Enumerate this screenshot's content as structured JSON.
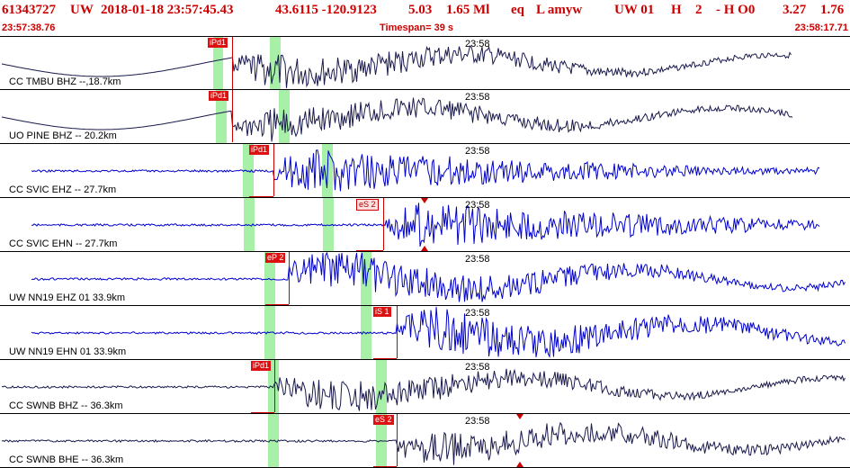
{
  "header": {
    "event_id": "61343727",
    "network": "UW",
    "datetime": "2018-01-18 23:57:45.43",
    "latlon": "43.6115 -120.9123",
    "depth": "5.03",
    "magnitude": "1.65 Ml",
    "type": "eq",
    "flags": "L amyw",
    "net_ver": "UW 01",
    "quality": "H",
    "num": "2",
    "status": "- H O0",
    "val1": "3.27",
    "val2": "1.76"
  },
  "subheader": {
    "start_time": "23:57:38.76",
    "timespan": "Timespan=  39 s",
    "end_time": "23:58:17.71"
  },
  "colors": {
    "header_red": "#cc0000",
    "trace_dark": "#1a1a4d",
    "trace_blue": "#0000cc",
    "pick_green": "#a8f0a8",
    "pick_red": "#dd1111"
  },
  "panels": [
    {
      "label": "CC TMBU BHZ --,18.7km",
      "time_label": "23:58",
      "pick": "iPd1",
      "pick_style": "dark",
      "trace_color": "dark",
      "trace_style": "long"
    },
    {
      "label": "UO PINE BHZ -- 20.2km",
      "time_label": "23:58",
      "pick": "iPd1",
      "pick_style": "dark",
      "trace_color": "dark",
      "trace_style": "long"
    },
    {
      "label": "CC SVIC EHZ -- 27.7km",
      "time_label": "23:58",
      "pick": "iPd1",
      "pick_style": "dark",
      "trace_color": "blue",
      "trace_style": "short"
    },
    {
      "label": "CC SVIC EHN -- 27.7km",
      "time_label": "23:58",
      "pick": "eS 2",
      "pick_style": "light",
      "trace_color": "blue",
      "trace_style": "short"
    },
    {
      "label": "UW NN19 EHZ 01 33.9km",
      "time_label": "23:58",
      "pick": "eP 2",
      "pick_style": "dark",
      "trace_color": "blue",
      "trace_style": "full"
    },
    {
      "label": "UW NN19 EHN 01 33.9km",
      "time_label": "23:58",
      "pick": "iS 1",
      "pick_style": "dark",
      "trace_color": "blue",
      "trace_style": "full"
    },
    {
      "label": "CC SWNB BHZ -- 36.3km",
      "time_label": "23:58",
      "pick": "iPd1",
      "pick_style": "dark",
      "trace_color": "dark",
      "trace_style": "full"
    },
    {
      "label": "CC SWNB BHE -- 36.3km",
      "time_label": "23:58",
      "pick": "eS 2",
      "pick_style": "dark",
      "trace_color": "dark",
      "trace_style": "full"
    }
  ]
}
